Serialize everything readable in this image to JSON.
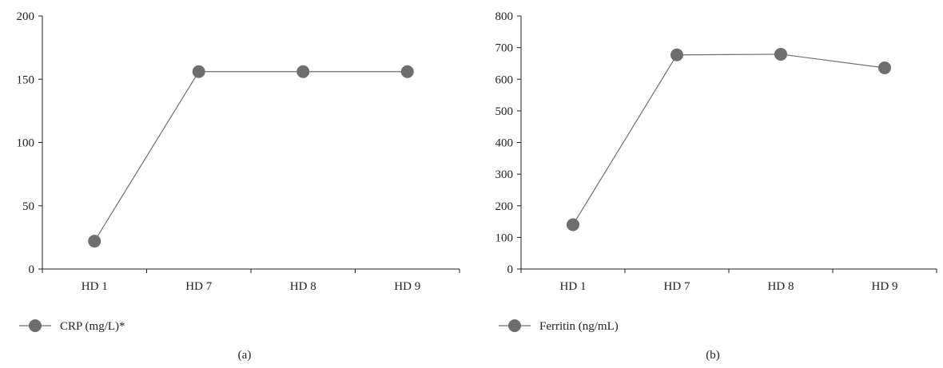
{
  "chart_data": [
    {
      "type": "line",
      "panel_label": "(a)",
      "categories": [
        "HD 1",
        "HD 7",
        "HD 8",
        "HD 9"
      ],
      "series": [
        {
          "name": "CRP (mg/L)*",
          "values": [
            22,
            156,
            156,
            156
          ],
          "color": "#6e6e6e"
        }
      ],
      "ylim": [
        0,
        200
      ],
      "yticks": [
        0,
        50,
        100,
        150,
        200
      ],
      "grid": false,
      "legend": "bottom-left"
    },
    {
      "type": "line",
      "panel_label": "(b)",
      "categories": [
        "HD 1",
        "HD 7",
        "HD 8",
        "HD 9"
      ],
      "series": [
        {
          "name": "Ferritin (ng/mL)",
          "values": [
            140,
            677,
            679,
            636
          ],
          "color": "#6e6e6e"
        }
      ],
      "ylim": [
        0,
        800
      ],
      "yticks": [
        0,
        100,
        200,
        300,
        400,
        500,
        600,
        700,
        800
      ],
      "grid": false,
      "legend": "bottom-left"
    }
  ]
}
